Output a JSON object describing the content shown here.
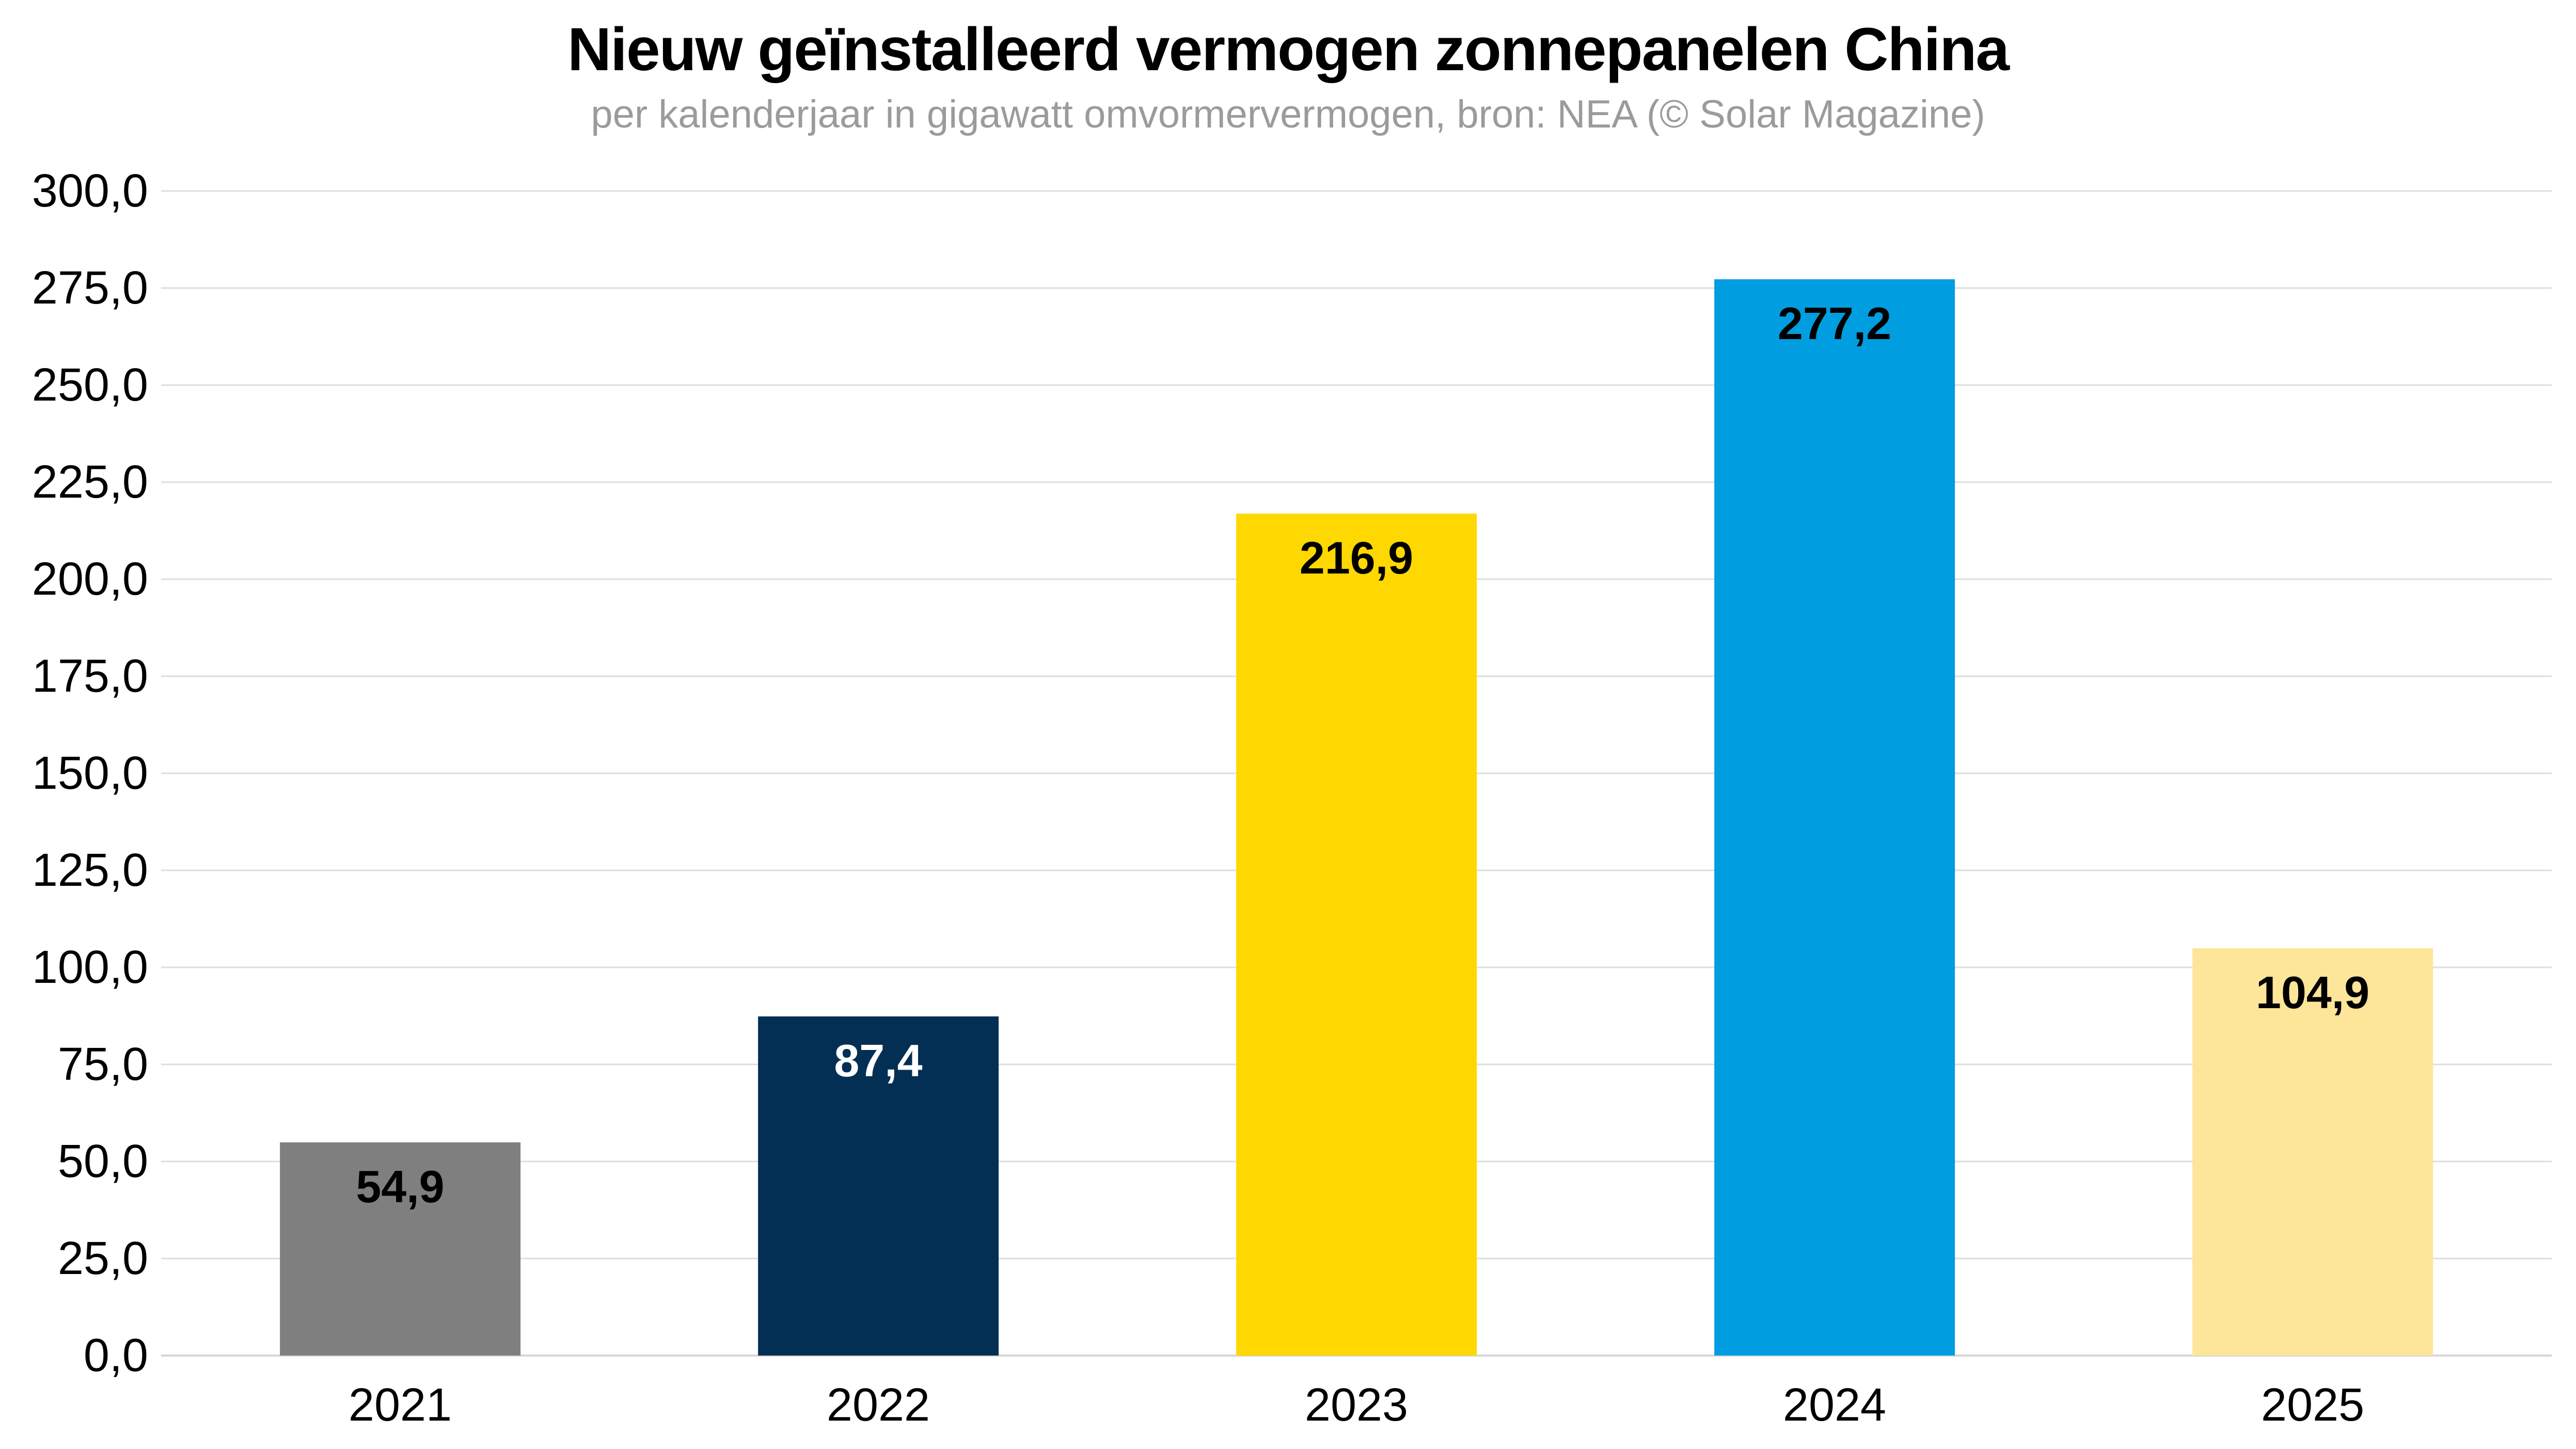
{
  "header": {
    "title": "Nieuw geïnstalleerd vermogen zonnepanelen China",
    "subtitle": "per kalenderjaar in gigawatt omvormervermogen, bron: NEA (© Solar Magazine)"
  },
  "chart_data": {
    "type": "bar",
    "title": "Nieuw geïnstalleerd vermogen zonnepanelen China",
    "subtitle": "per kalenderjaar in gigawatt omvormervermogen, bron: NEA (© Solar Magazine)",
    "categories": [
      "2021",
      "2022",
      "2023",
      "2024",
      "2025"
    ],
    "values": [
      54.9,
      87.4,
      216.9,
      277.2,
      104.9
    ],
    "value_labels": [
      "54,9",
      "87,4",
      "216,9",
      "277,2",
      "104,9"
    ],
    "bar_colors": [
      "#7f7f7f",
      "#032f54",
      "#fed800",
      "#019de1",
      "#fde59a"
    ],
    "value_label_colors": [
      "#000000",
      "#ffffff",
      "#000000",
      "#000000",
      "#000000"
    ],
    "xlabel": "",
    "ylabel": "",
    "ylim": [
      0,
      300
    ],
    "ytick_step": 25,
    "ytick_labels": [
      "300,0",
      "275,0",
      "250,0",
      "225,0",
      "200,0",
      "175,0",
      "150,0",
      "125,0",
      "100,0",
      "75,0",
      "50,0",
      "25,0",
      "0,0"
    ],
    "grid": true,
    "legend": false,
    "gridline_color": "#dedede",
    "subtitle_color": "#9b9b9b",
    "background_color": "#ffffff"
  }
}
